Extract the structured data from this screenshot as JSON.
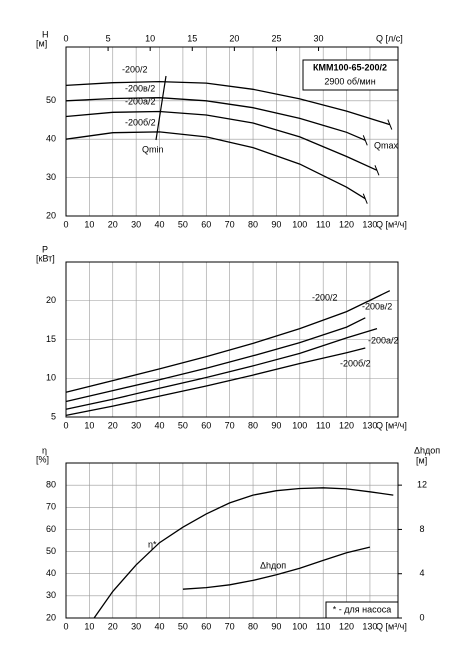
{
  "chart_data": [
    {
      "type": "line",
      "title": "КММ100-65-200/2",
      "subtitle": "2900 об/мин",
      "y_label": "H",
      "y_unit": "[м]",
      "x_label": "Q [м³/ч]",
      "x2_label": "Q [л/с]",
      "xlim": [
        0,
        142
      ],
      "xticks": [
        0,
        10,
        20,
        30,
        40,
        50,
        60,
        70,
        80,
        90,
        100,
        110,
        120,
        130
      ],
      "x2lim": [
        0,
        39.44
      ],
      "x2ticks": [
        0,
        5,
        10,
        15,
        20,
        25,
        30
      ],
      "ylim": [
        20,
        64
      ],
      "yticks": [
        20,
        30,
        40,
        50
      ],
      "grid": true,
      "annotations": [
        "Qmin",
        "Qmax"
      ],
      "series": [
        {
          "name": "-200/2",
          "color": "#000000",
          "x": [
            0,
            20,
            40,
            60,
            80,
            100,
            120,
            138.5
          ],
          "values": [
            54,
            54.7,
            55,
            54.6,
            53,
            50.5,
            47.3,
            43.8
          ]
        },
        {
          "name": "-200в/2",
          "color": "#000000",
          "x": [
            0,
            20,
            40,
            60,
            80,
            100,
            120,
            128
          ],
          "values": [
            50,
            50.6,
            50.8,
            50,
            48.2,
            45.4,
            41.8,
            39.7
          ]
        },
        {
          "name": "-200а/2",
          "color": "#000000",
          "x": [
            0,
            20,
            40,
            60,
            80,
            100,
            120,
            133
          ],
          "values": [
            45.9,
            47,
            47.2,
            46.3,
            44.2,
            40.6,
            35.5,
            31.9
          ]
        },
        {
          "name": "-200б/2",
          "color": "#000000",
          "x": [
            0,
            20,
            40,
            60,
            80,
            100,
            120,
            128
          ],
          "values": [
            40,
            41.7,
            41.9,
            40.6,
            37.8,
            33.5,
            27.5,
            24.5
          ]
        }
      ]
    },
    {
      "type": "line",
      "y_label": "P",
      "y_unit": "[кВт]",
      "x_label": "Q [м³/ч]",
      "xlim": [
        0,
        142
      ],
      "xticks": [
        0,
        10,
        20,
        30,
        40,
        50,
        60,
        70,
        80,
        90,
        100,
        110,
        120,
        130
      ],
      "ylim": [
        5,
        25
      ],
      "yticks": [
        5,
        10,
        15,
        20
      ],
      "grid": true,
      "series": [
        {
          "name": "-200/2",
          "color": "#000000",
          "x": [
            0,
            20,
            40,
            60,
            80,
            100,
            120,
            138.5
          ],
          "values": [
            8.2,
            9.7,
            11.2,
            12.8,
            14.5,
            16.4,
            18.6,
            21.3
          ]
        },
        {
          "name": "-200в/2",
          "color": "#000000",
          "x": [
            0,
            20,
            40,
            60,
            80,
            100,
            120,
            128
          ],
          "values": [
            7,
            8.4,
            9.8,
            11.3,
            12.9,
            14.6,
            16.6,
            17.8
          ]
        },
        {
          "name": "-200а/2",
          "color": "#000000",
          "x": [
            0,
            20,
            40,
            60,
            80,
            100,
            120,
            133
          ],
          "values": [
            6,
            7.3,
            8.7,
            10.1,
            11.6,
            13.2,
            15.2,
            16.4
          ]
        },
        {
          "name": "-200б/2",
          "color": "#000000",
          "x": [
            0,
            20,
            40,
            60,
            80,
            100,
            120,
            128
          ],
          "values": [
            5.2,
            6.4,
            7.7,
            9,
            10.4,
            11.9,
            13.3,
            13.9
          ]
        }
      ]
    },
    {
      "type": "line",
      "y_label": "η",
      "y_unit": "[%]",
      "y2_label": "Δhдоп",
      "y2_unit": "[м]",
      "x_label": "Q [м³/ч]",
      "xlim": [
        0,
        142
      ],
      "xticks": [
        0,
        10,
        20,
        30,
        40,
        50,
        60,
        70,
        80,
        90,
        100,
        110,
        120,
        130
      ],
      "ylim": [
        20,
        90
      ],
      "yticks": [
        20,
        30,
        40,
        50,
        60,
        70,
        80
      ],
      "y2lim": [
        0,
        14
      ],
      "y2ticks": [
        0,
        4,
        8,
        12
      ],
      "grid": true,
      "note": "* - для насоса",
      "series": [
        {
          "name": "η*",
          "color": "#000000",
          "x": [
            12,
            20,
            30,
            40,
            50,
            60,
            70,
            80,
            90,
            100,
            110,
            120,
            130,
            140
          ],
          "values": [
            20,
            32,
            44,
            54,
            61,
            67,
            72,
            75.5,
            77.5,
            78.5,
            78.8,
            78.3,
            77,
            75.5
          ]
        },
        {
          "name": "Δhдоп",
          "color": "#000000",
          "axis": "y2",
          "x": [
            50,
            60,
            70,
            80,
            90,
            100,
            110,
            120,
            130
          ],
          "values": [
            2.6,
            2.75,
            3.0,
            3.4,
            3.9,
            4.5,
            5.2,
            5.9,
            6.4
          ]
        }
      ]
    }
  ]
}
